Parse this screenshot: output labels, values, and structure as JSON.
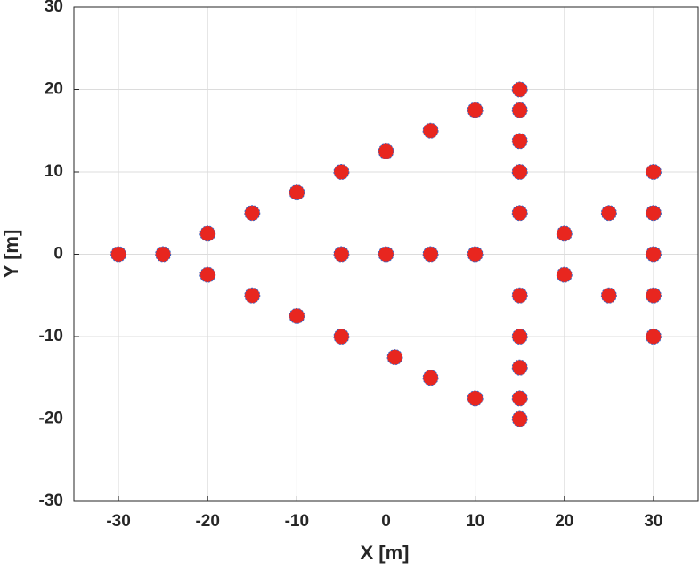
{
  "chart_data": {
    "type": "scatter",
    "xlabel": "X [m]",
    "ylabel": "Y [m]",
    "x": [
      -30,
      -25,
      -20,
      -20,
      -15,
      -15,
      -10,
      -10,
      -5,
      -5,
      -5,
      0,
      0,
      1,
      5,
      5,
      5,
      10,
      10,
      10,
      15,
      15,
      15,
      15,
      15,
      15,
      15,
      15,
      15,
      15,
      20,
      20,
      25,
      25,
      30,
      30,
      30,
      30,
      30
    ],
    "values": [
      0,
      0,
      2.5,
      -2.5,
      5,
      -5,
      7.5,
      -7.5,
      10,
      0,
      -10,
      12.5,
      0,
      -12.5,
      15,
      0,
      -15,
      17.5,
      0,
      -17.5,
      20,
      17.5,
      13.75,
      10,
      5,
      -5,
      -10,
      -13.75,
      -17.5,
      -20,
      2.5,
      -2.5,
      5,
      -5,
      10,
      5,
      0,
      -5,
      -10
    ],
    "color": "#e8261f",
    "edgecolor": "#3a66c4",
    "xlim": [
      -35,
      35
    ],
    "xticks": [
      -30,
      -20,
      -10,
      0,
      10,
      20,
      30
    ],
    "ylim": [
      -30,
      30
    ],
    "yticks": [
      -30,
      -20,
      -10,
      0,
      10,
      20,
      30
    ],
    "grid": true
  }
}
